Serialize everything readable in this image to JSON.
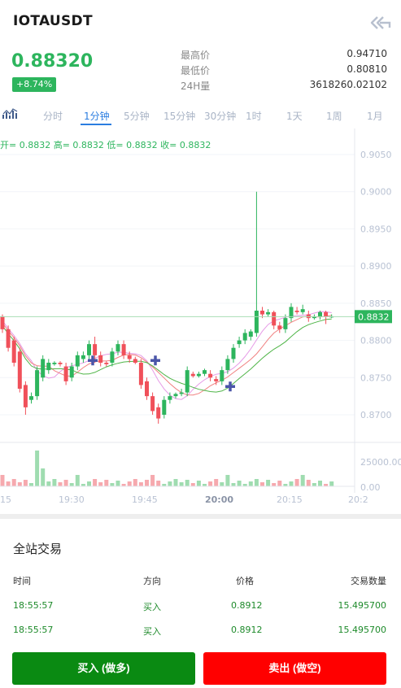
{
  "header": {
    "pair": "IOTAUSDT"
  },
  "ticker": {
    "last_price": "0.88320",
    "change": "+8.74%",
    "stats": [
      {
        "label": "最高价",
        "value": "0.94710"
      },
      {
        "label": "最低价",
        "value": "0.80810"
      },
      {
        "label": "24H量",
        "value": "3618260.02102"
      }
    ]
  },
  "tabs": [
    "分时",
    "1分钟",
    "5分钟",
    "15分钟",
    "30分钟",
    "1时",
    "1天",
    "1周",
    "1月"
  ],
  "active_tab": "1分钟",
  "ohlc": {
    "open": "开= 0.8832",
    "high": "高= 0.8832",
    "low": "低= 0.8832",
    "close": "收= 0.8832"
  },
  "chart_data": {
    "type": "candlestick",
    "price_axis": [
      "0.9050",
      "0.9000",
      "0.8950",
      "0.8900",
      "0.8850",
      "0.8800",
      "0.8750",
      "0.8700"
    ],
    "current_price_label": "0.8832",
    "volume_axis": [
      "25000.00",
      "0.00"
    ],
    "time_axis": [
      "15",
      "19:30",
      "19:45",
      "20:00",
      "20:15",
      "20:2"
    ],
    "colors": {
      "up": "#2db55d",
      "down": "#f0505a",
      "ma1": "#e69ae6",
      "ma2": "#f08080",
      "ma3": "#4fb548"
    }
  },
  "trades": {
    "title": "全站交易",
    "headers": {
      "time": "时间",
      "side": "方向",
      "price": "价格",
      "amount": "交易数量"
    },
    "rows": [
      {
        "time": "18:55:57",
        "side": "买入",
        "price": "0.8912",
        "amount": "15.495700"
      },
      {
        "time": "18:55:57",
        "side": "买入",
        "price": "0.8912",
        "amount": "15.495700"
      }
    ]
  },
  "actions": {
    "buy": "买入 (做多)",
    "sell": "卖出 (做空)"
  }
}
